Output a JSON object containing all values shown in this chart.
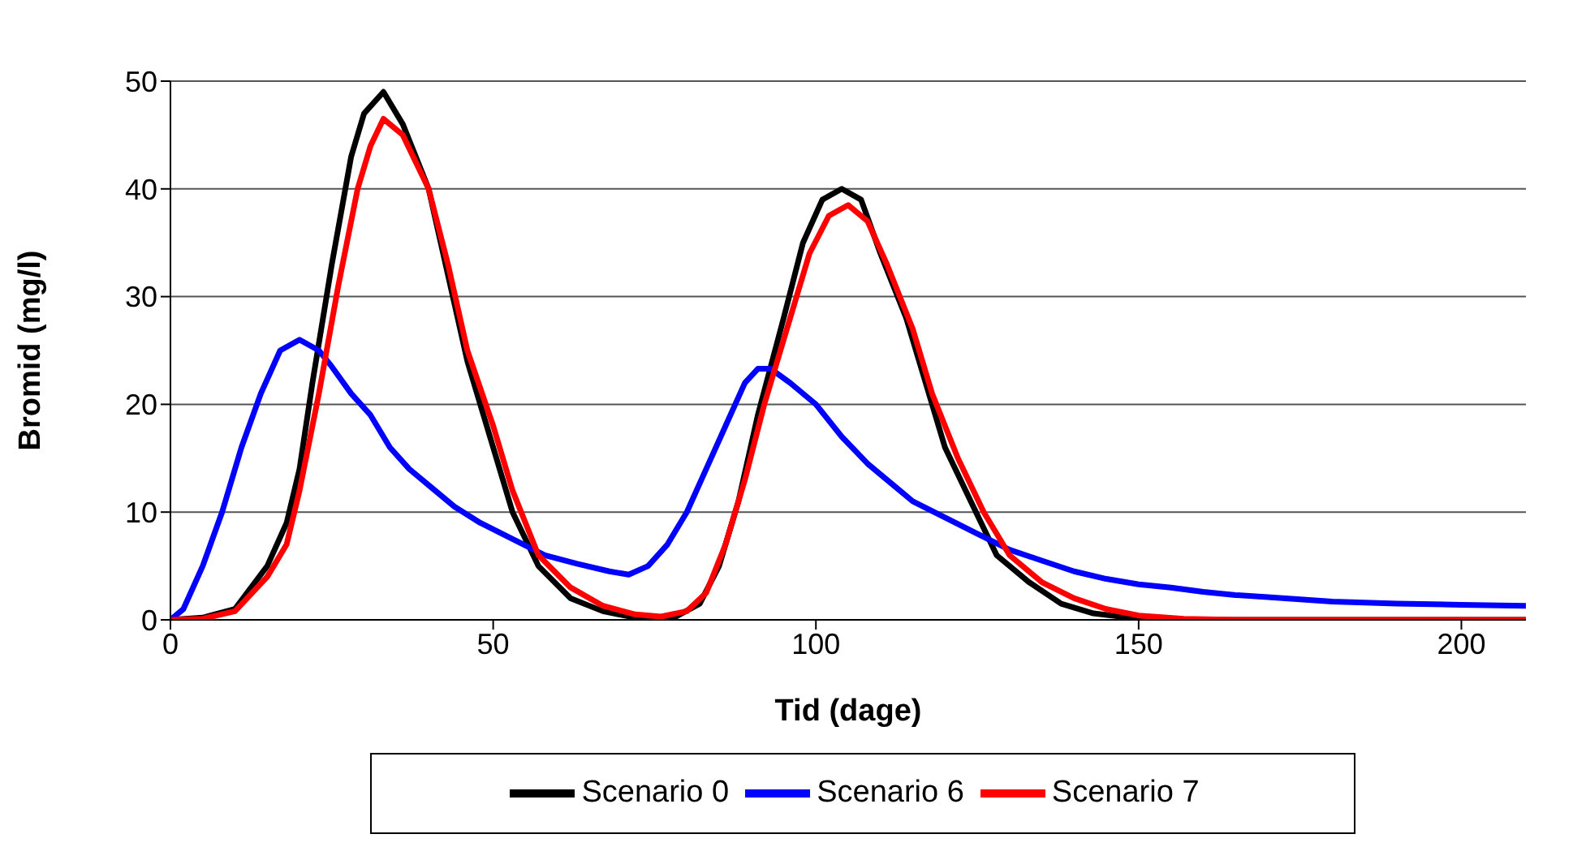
{
  "chart_data": {
    "type": "line",
    "xlabel": "Tid  (dage)",
    "ylabel": "Bromid (mg/l)",
    "xlim": [
      0,
      210
    ],
    "xticks": [
      0,
      50,
      100,
      150,
      200
    ],
    "ylim": [
      0,
      50
    ],
    "yticks": [
      0,
      10,
      20,
      30,
      40,
      50
    ],
    "grid": "y",
    "legend": "bottom",
    "marker": "none",
    "line_style": "solid",
    "series": [
      {
        "name": "Scenario 0",
        "color": "#000000",
        "x": [
          0,
          5,
          10,
          15,
          18,
          20,
          22,
          25,
          28,
          30,
          33,
          36,
          40,
          43,
          46,
          50,
          53,
          57,
          62,
          67,
          72,
          78,
          82,
          85,
          88,
          91,
          95,
          98,
          101,
          104,
          107,
          110,
          114,
          117,
          120,
          124,
          128,
          133,
          138,
          143,
          150,
          160,
          210
        ],
        "values": [
          0,
          0.2,
          1,
          5,
          9,
          14,
          22,
          33,
          43,
          47,
          49,
          46,
          40,
          32,
          24,
          16,
          10,
          5,
          2,
          0.8,
          0.2,
          0.2,
          1.5,
          5,
          11,
          19,
          28,
          35,
          39,
          40,
          39,
          34,
          28,
          22,
          16,
          11,
          6,
          3.5,
          1.5,
          0.6,
          0.1,
          0,
          0
        ]
      },
      {
        "name": "Scenario 6",
        "color": "#0000ff",
        "x": [
          0,
          2,
          5,
          8,
          11,
          14,
          17,
          20,
          23,
          25,
          28,
          31,
          34,
          37,
          40,
          44,
          48,
          53,
          58,
          63,
          68,
          71,
          74,
          77,
          80,
          83,
          86,
          89,
          91,
          93,
          96,
          100,
          104,
          108,
          112,
          115,
          120,
          125,
          130,
          135,
          140,
          145,
          150,
          155,
          160,
          165,
          170,
          175,
          180,
          190,
          200,
          210
        ],
        "values": [
          0,
          1,
          5,
          10,
          16,
          21,
          25,
          26,
          25,
          23.5,
          21,
          19,
          16,
          14,
          12.5,
          10.5,
          9,
          7.5,
          6,
          5.2,
          4.5,
          4.2,
          5,
          7,
          10,
          14,
          18,
          22,
          23.3,
          23.3,
          22,
          20,
          17,
          14.5,
          12.5,
          11,
          9.5,
          8,
          6.5,
          5.5,
          4.5,
          3.8,
          3.3,
          3,
          2.6,
          2.3,
          2.1,
          1.9,
          1.7,
          1.5,
          1.4,
          1.3
        ]
      },
      {
        "name": "Scenario 7",
        "color": "#ff0000",
        "x": [
          0,
          5,
          10,
          15,
          18,
          20,
          23,
          26,
          29,
          31,
          33,
          36,
          40,
          43,
          46,
          50,
          53,
          57,
          62,
          67,
          72,
          76,
          80,
          83,
          86,
          89,
          92,
          96,
          99,
          102,
          105,
          108,
          111,
          115,
          118,
          122,
          126,
          130,
          135,
          140,
          145,
          150,
          157,
          165,
          210
        ],
        "values": [
          0,
          0.1,
          0.8,
          4,
          7,
          12,
          21,
          31,
          40,
          44,
          46.5,
          45,
          40,
          33,
          25,
          18,
          12,
          6,
          3,
          1.3,
          0.5,
          0.3,
          0.8,
          2.5,
          7,
          13,
          20,
          28,
          34,
          37.5,
          38.5,
          37,
          33,
          27,
          21,
          15,
          10,
          6,
          3.5,
          2,
          1,
          0.4,
          0.1,
          0,
          0
        ]
      }
    ]
  }
}
